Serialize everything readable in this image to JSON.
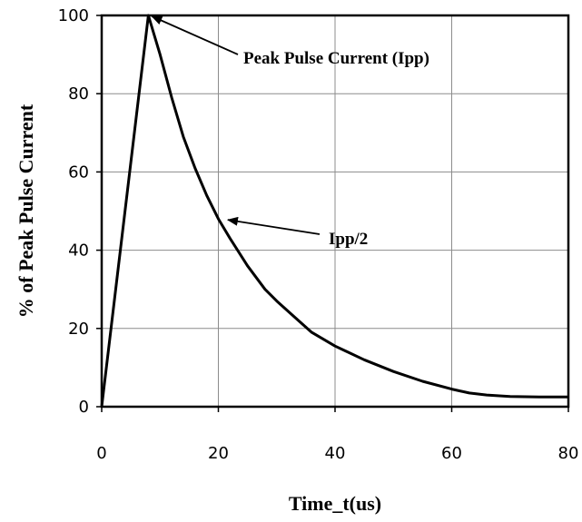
{
  "chart_data": {
    "type": "line",
    "xlabel": "Time_t(us)",
    "ylabel": "% of Peak Pulse Current",
    "xlim": [
      0,
      80
    ],
    "ylim": [
      0,
      100
    ],
    "xticks": [
      0,
      20,
      40,
      60,
      80
    ],
    "yticks": [
      0,
      20,
      40,
      60,
      80,
      100
    ],
    "grid": true,
    "series": [
      {
        "x": [
          0,
          8,
          10,
          12,
          14,
          16,
          18,
          20,
          22,
          25,
          28,
          30,
          33,
          36,
          40,
          45,
          50,
          55,
          60,
          63,
          66,
          70,
          75,
          80
        ],
        "y": [
          0,
          100,
          90,
          79,
          69,
          61,
          54,
          48,
          43,
          36,
          30,
          27,
          23,
          19,
          15.5,
          12,
          9,
          6.5,
          4.5,
          3.5,
          3,
          2.6,
          2.5,
          2.5
        ]
      }
    ],
    "annotations": [
      {
        "text": "Peak Pulse Current (Ipp)",
        "x": 8,
        "y": 100
      },
      {
        "text": "Ipp/2",
        "x": 21,
        "y": 48
      }
    ]
  }
}
